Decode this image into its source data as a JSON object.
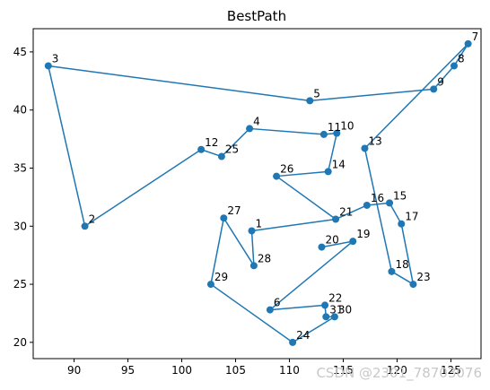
{
  "chart_data": {
    "type": "line",
    "title": "BestPath",
    "xlabel": "",
    "ylabel": "",
    "xlim": [
      86.2,
      127.8
    ],
    "ylim": [
      18.6,
      47.0
    ],
    "x_ticks": [
      90,
      95,
      100,
      105,
      110,
      115,
      120,
      125
    ],
    "y_ticks": [
      20,
      25,
      30,
      35,
      40,
      45
    ],
    "grid": false,
    "series_color": "#1f77b4",
    "points": [
      {
        "label": "1",
        "x": 106.5,
        "y": 29.6
      },
      {
        "label": "2",
        "x": 91.0,
        "y": 30.0
      },
      {
        "label": "3",
        "x": 87.6,
        "y": 43.8
      },
      {
        "label": "4",
        "x": 106.3,
        "y": 38.4
      },
      {
        "label": "5",
        "x": 111.9,
        "y": 40.8
      },
      {
        "label": "6",
        "x": 108.2,
        "y": 22.8
      },
      {
        "label": "7",
        "x": 126.6,
        "y": 45.7
      },
      {
        "label": "8",
        "x": 125.3,
        "y": 43.8
      },
      {
        "label": "9",
        "x": 123.4,
        "y": 41.8
      },
      {
        "label": "10",
        "x": 114.4,
        "y": 38.0
      },
      {
        "label": "11",
        "x": 113.2,
        "y": 37.9
      },
      {
        "label": "12",
        "x": 101.8,
        "y": 36.6
      },
      {
        "label": "13",
        "x": 117.0,
        "y": 36.7
      },
      {
        "label": "14",
        "x": 113.6,
        "y": 34.7
      },
      {
        "label": "15",
        "x": 119.3,
        "y": 32.0
      },
      {
        "label": "16",
        "x": 117.2,
        "y": 31.8
      },
      {
        "label": "17",
        "x": 120.4,
        "y": 30.2
      },
      {
        "label": "18",
        "x": 119.5,
        "y": 26.1
      },
      {
        "label": "19",
        "x": 115.9,
        "y": 28.7
      },
      {
        "label": "20",
        "x": 113.0,
        "y": 28.2
      },
      {
        "label": "21",
        "x": 114.3,
        "y": 30.6
      },
      {
        "label": "22",
        "x": 113.3,
        "y": 23.2
      },
      {
        "label": "23",
        "x": 121.5,
        "y": 25.0
      },
      {
        "label": "24",
        "x": 110.3,
        "y": 20.0
      },
      {
        "label": "25",
        "x": 103.7,
        "y": 36.0
      },
      {
        "label": "26",
        "x": 108.8,
        "y": 34.3
      },
      {
        "label": "27",
        "x": 103.9,
        "y": 30.7
      },
      {
        "label": "28",
        "x": 106.7,
        "y": 26.6
      },
      {
        "label": "29",
        "x": 102.7,
        "y": 25.0
      },
      {
        "label": "30",
        "x": 114.2,
        "y": 22.2
      },
      {
        "label": "31",
        "x": 113.4,
        "y": 22.2
      }
    ],
    "path_order": [
      "1",
      "2",
      "3",
      "5",
      "9",
      "8",
      "7",
      "13",
      "18",
      "23",
      "17",
      "15",
      "16",
      "21",
      "26",
      "14",
      "10",
      "11",
      "4",
      "25",
      "12",
      "2"
    ],
    "path_segments": [
      [
        "2",
        "3"
      ],
      [
        "3",
        "5"
      ],
      [
        "5",
        "9"
      ],
      [
        "9",
        "8"
      ],
      [
        "8",
        "7"
      ],
      [
        "7",
        "13"
      ],
      [
        "13",
        "18"
      ],
      [
        "18",
        "23"
      ],
      [
        "23",
        "17"
      ],
      [
        "17",
        "15"
      ],
      [
        "15",
        "16"
      ],
      [
        "16",
        "21"
      ],
      [
        "21",
        "26"
      ],
      [
        "26",
        "14"
      ],
      [
        "14",
        "10"
      ],
      [
        "10",
        "11"
      ],
      [
        "11",
        "4"
      ],
      [
        "4",
        "25"
      ],
      [
        "25",
        "12"
      ],
      [
        "12",
        "2"
      ]
    ],
    "path_segments_lower": [
      [
        "21",
        "1"
      ],
      [
        "1",
        "28"
      ],
      [
        "28",
        "27"
      ],
      [
        "27",
        "29"
      ],
      [
        "29",
        "24"
      ],
      [
        "24",
        "30"
      ],
      [
        "30",
        "31"
      ],
      [
        "31",
        "22"
      ],
      [
        "22",
        "6"
      ],
      [
        "6",
        "19"
      ],
      [
        "19",
        "20"
      ]
    ]
  },
  "watermark": "CSDN @2301_78703076"
}
